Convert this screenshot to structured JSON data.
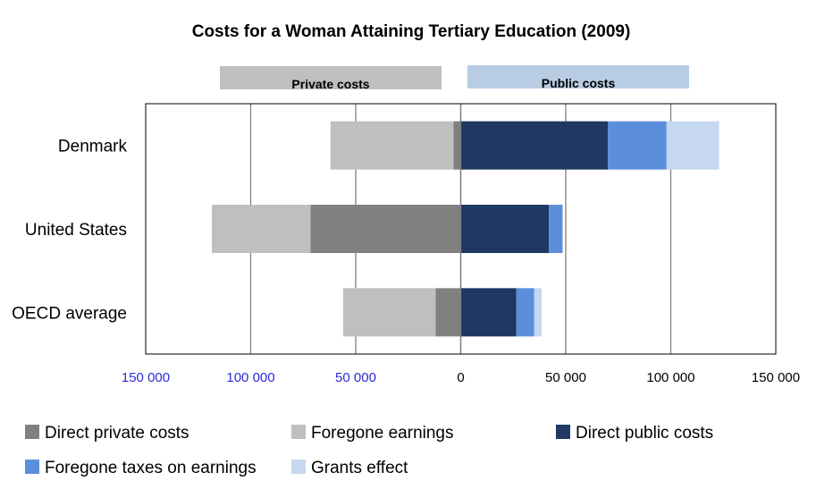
{
  "chart_data": {
    "type": "bar",
    "orientation": "horizontal-stacked-diverging",
    "title": "Costs for a Woman Attaining Tertiary Education (2009)",
    "banners": {
      "left": "Private costs",
      "right": "Public costs"
    },
    "categories": [
      "Denmark",
      "United States",
      "OECD average"
    ],
    "xlim": [
      -150000,
      150000
    ],
    "xticks": [
      -150000,
      -100000,
      -50000,
      0,
      50000,
      100000,
      150000
    ],
    "xtick_labels": [
      "150 000",
      "100 000",
      "50 000",
      "0",
      "50 000",
      "100 000",
      "150 000"
    ],
    "grid": "vertical",
    "legend_position": "bottom",
    "series": [
      {
        "name": "Direct private costs",
        "side": "private",
        "color": "#808080",
        "values": [
          3500,
          71500,
          12000
        ]
      },
      {
        "name": "Foregone earnings",
        "side": "private",
        "color": "#bfbfbf",
        "values": [
          58500,
          47000,
          44000
        ]
      },
      {
        "name": "Direct public costs",
        "side": "public",
        "color": "#1f3864",
        "values": [
          70000,
          42000,
          26500
        ]
      },
      {
        "name": "Foregone taxes on earnings",
        "side": "public",
        "color": "#5b8fd9",
        "values": [
          28000,
          6500,
          8500
        ]
      },
      {
        "name": "Grants effect",
        "side": "public",
        "color": "#c6d7f0",
        "values": [
          25000,
          0,
          3500
        ]
      }
    ],
    "colors": {
      "private_banner": "#bfbfbf",
      "public_banner": "#b8cce4",
      "grid": "#808080",
      "negative_tick": "#2a2ad8"
    }
  }
}
